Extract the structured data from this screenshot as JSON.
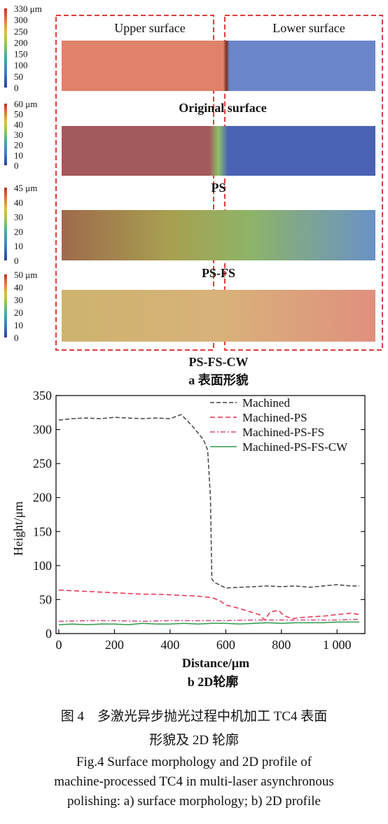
{
  "panel_a": {
    "region_labels": [
      "Upper surface",
      "Lower surface"
    ],
    "strip_labels": [
      "Original surface",
      "PS",
      "PS-FS",
      "PS-FS-CW"
    ],
    "subcaption": "a  表面形貌",
    "colorbars": [
      {
        "ticks": [
          "330 μm",
          "300",
          "250",
          "200",
          "150",
          "100",
          "50",
          "0"
        ]
      },
      {
        "ticks": [
          "60 μm",
          "50",
          "40",
          "30",
          "20",
          "10",
          "0"
        ]
      },
      {
        "ticks": [
          "45 μm",
          "40",
          "30",
          "20",
          "10",
          "0"
        ]
      },
      {
        "ticks": [
          "50 μm",
          "40",
          "30",
          "20",
          "10",
          "0"
        ]
      }
    ],
    "colors": {
      "dashed_box": "#e03c3c",
      "strip1_left": "#e0816a",
      "strip1_right": "#6b86c8",
      "strip2_left": "#a35a5c",
      "strip2_right": "#4a62b4",
      "strip3_left": "#9e6a4c",
      "strip3_right": "#6a92c6",
      "strip4_left": "#cdb36e",
      "strip4_right": "#e0907e"
    }
  },
  "chart_data": {
    "type": "line",
    "subcaption": "b  2D轮廓",
    "xlabel": "Distance/μm",
    "ylabel": "Height/μm",
    "xlim": [
      -10,
      1100
    ],
    "ylim": [
      0,
      350
    ],
    "xticks": [
      0,
      200,
      400,
      600,
      800,
      1000
    ],
    "xtick_labels": [
      "0",
      "200",
      "400",
      "600",
      "800",
      "1 000"
    ],
    "yticks": [
      0,
      50,
      100,
      150,
      200,
      250,
      300,
      350
    ],
    "ytick_labels": [
      "0",
      "50",
      "100",
      "150",
      "200",
      "250",
      "300",
      "350"
    ],
    "legend_position": "top-right",
    "series": [
      {
        "name": "Machined",
        "color": "#444444",
        "dash": "6,3",
        "x": [
          0,
          50,
          100,
          150,
          200,
          250,
          300,
          350,
          400,
          440,
          480,
          520,
          535,
          545,
          550,
          560,
          600,
          650,
          700,
          750,
          800,
          850,
          900,
          950,
          1000,
          1050,
          1080
        ],
        "y": [
          314,
          316,
          317,
          316,
          318,
          317,
          316,
          317,
          316,
          322,
          305,
          285,
          270,
          200,
          80,
          75,
          67,
          68,
          69,
          70,
          69,
          70,
          68,
          70,
          72,
          70,
          70
        ]
      },
      {
        "name": "Machined-PS",
        "color": "#e8304c",
        "dash": "7,4",
        "x": [
          0,
          50,
          100,
          150,
          200,
          250,
          300,
          350,
          400,
          450,
          500,
          550,
          580,
          600,
          640,
          680,
          720,
          740,
          760,
          790,
          810,
          840,
          880,
          920,
          960,
          1000,
          1050,
          1080
        ],
        "y": [
          64,
          63,
          62,
          61,
          60,
          59,
          58,
          58,
          57,
          56,
          55,
          53,
          48,
          42,
          38,
          33,
          28,
          20,
          32,
          34,
          26,
          22,
          24,
          25,
          26,
          28,
          30,
          28
        ]
      },
      {
        "name": "Machined-PS-FS",
        "color": "#d24a7a",
        "dash": "7,3,2,3",
        "x": [
          0,
          100,
          200,
          300,
          400,
          500,
          600,
          700,
          800,
          900,
          1000,
          1080
        ],
        "y": [
          18,
          19,
          19,
          18,
          19,
          19,
          19,
          20,
          20,
          20,
          20,
          21
        ]
      },
      {
        "name": "Machined-PS-FS-CW",
        "color": "#2e9a4a",
        "dash": "",
        "x": [
          0,
          50,
          100,
          150,
          200,
          250,
          300,
          350,
          400,
          450,
          500,
          550,
          600,
          650,
          700,
          750,
          800,
          850,
          900,
          950,
          1000,
          1050,
          1080
        ],
        "y": [
          13,
          14,
          13,
          14,
          14,
          13,
          15,
          14,
          14,
          15,
          14,
          15,
          15,
          14,
          15,
          16,
          15,
          16,
          16,
          16,
          17,
          17,
          17
        ]
      }
    ]
  },
  "captions": {
    "cn_line1": "图 4　多激光异步抛光过程中机加工 TC4 表面",
    "cn_line2": "形貌及 2D 轮廓",
    "en_line1": "Fig.4 Surface morphology and 2D profile of",
    "en_line2": "machine-processed TC4 in multi-laser asynchronous",
    "en_line3": "polishing: a) surface morphology; b) 2D profile"
  }
}
